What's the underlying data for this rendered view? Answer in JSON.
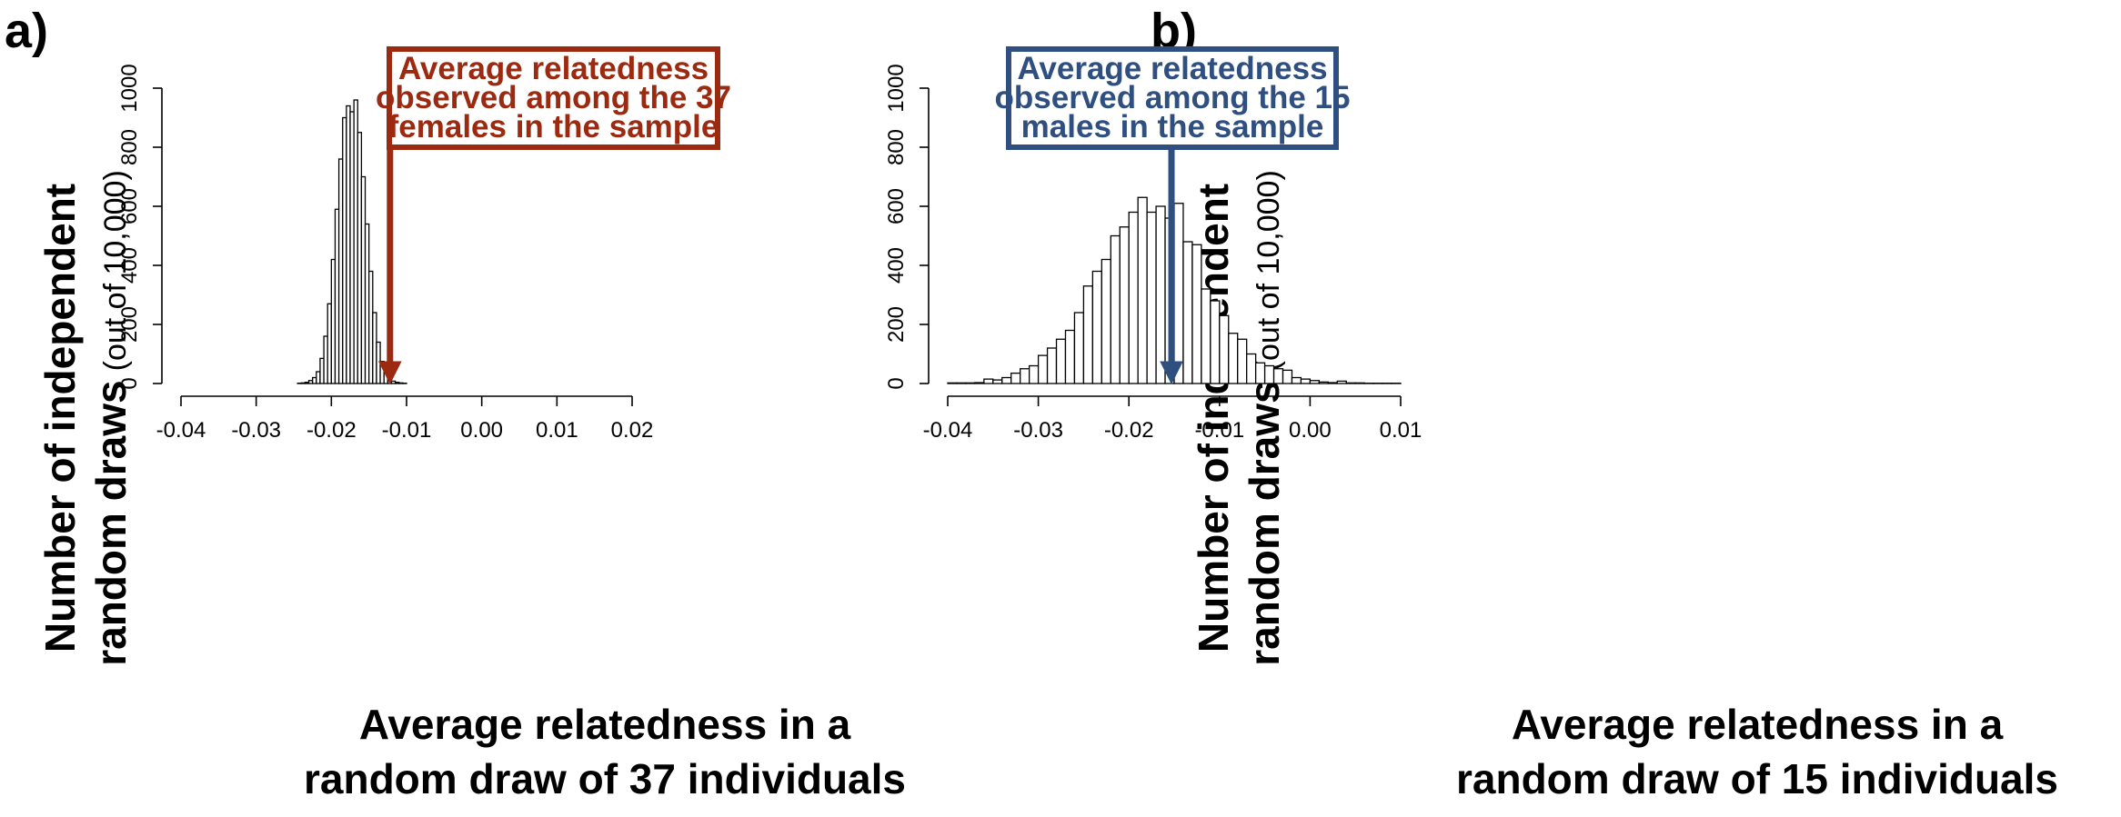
{
  "colors": {
    "panel_a_accent": "#9b2a10",
    "panel_b_accent": "#2f4f80",
    "bar_fill": "#ffffff",
    "bar_stroke": "#000000"
  },
  "chart_data": [
    {
      "type": "bar",
      "panel_label": "a)",
      "ylabel_line1": "Number of independent",
      "ylabel_line2": "random draws",
      "ylabel_suffix": "(out of 10,000)",
      "xlabel_line1": "Average relatedness in a",
      "xlabel_line2": "random draw of 37 individuals",
      "xlim": [
        -0.04,
        0.02
      ],
      "ylim": [
        0,
        1000
      ],
      "xticks": [
        "-0.04",
        "-0.03",
        "-0.02",
        "-0.01",
        "0.00",
        "0.01",
        "0.02"
      ],
      "yticks": [
        "0",
        "200",
        "400",
        "600",
        "800",
        "1000"
      ],
      "bin_width": 0.0005,
      "bins_start": -0.0245,
      "values": [
        1,
        2,
        4,
        10,
        20,
        40,
        85,
        160,
        270,
        420,
        590,
        760,
        900,
        940,
        920,
        960,
        850,
        700,
        540,
        380,
        240,
        140,
        75,
        38,
        18,
        8,
        4,
        2,
        1
      ],
      "annotation": {
        "lines": [
          "Average relatedness",
          "observed among the 37",
          "females in the sample"
        ],
        "x_value": -0.0122
      }
    },
    {
      "type": "bar",
      "panel_label": "b)",
      "ylabel_line1": "Number of independent",
      "ylabel_line2": "random draws",
      "ylabel_suffix": "(out of 10,000)",
      "xlabel_line1": "Average relatedness in a",
      "xlabel_line2": "random draw of 15 individuals",
      "xlim": [
        -0.04,
        0.01
      ],
      "ylim": [
        0,
        1000
      ],
      "xticks": [
        "-0.04",
        "-0.03",
        "-0.02",
        "-0.01",
        "0.00",
        "0.01"
      ],
      "yticks": [
        "0",
        "200",
        "400",
        "600",
        "800",
        "1000"
      ],
      "bin_width": 0.001,
      "bins_start": -0.04,
      "values": [
        2,
        2,
        2,
        3,
        15,
        12,
        20,
        35,
        50,
        60,
        95,
        120,
        150,
        180,
        240,
        330,
        380,
        420,
        500,
        530,
        580,
        630,
        580,
        600,
        560,
        610,
        480,
        470,
        320,
        280,
        230,
        170,
        150,
        100,
        70,
        60,
        50,
        45,
        20,
        15,
        10,
        5,
        3,
        8,
        2,
        2,
        1,
        1,
        1,
        1
      ],
      "annotation": {
        "lines": [
          "Average relatedness",
          "observed among the 15",
          "males in the sample"
        ],
        "x_value": -0.0153
      }
    }
  ]
}
